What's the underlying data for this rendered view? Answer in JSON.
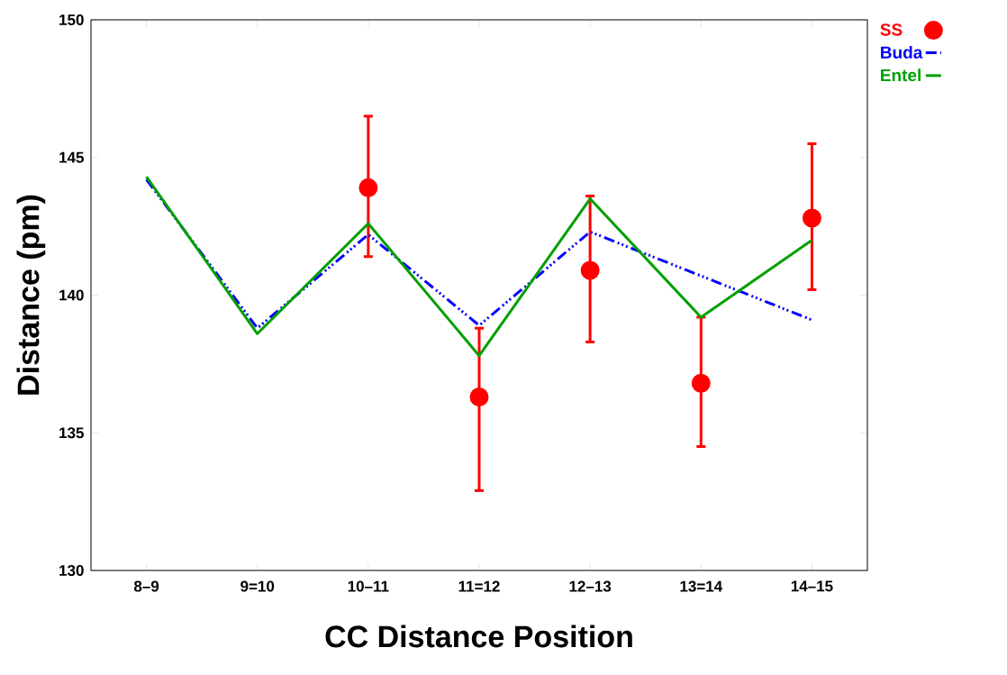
{
  "chart_data": {
    "type": "line",
    "xlabel": "CC Distance Position",
    "ylabel": "Distance (pm)",
    "categories": [
      "8–9",
      "9=10",
      "10–11",
      "11=12",
      "12–13",
      "13=14",
      "14–15"
    ],
    "ylim": [
      130,
      150
    ],
    "yticks": [
      130,
      135,
      140,
      145,
      150
    ],
    "legend": "right",
    "grid": false,
    "series": [
      {
        "name": "SS",
        "type": "scatter",
        "marker": "circle",
        "color": "#ff0000",
        "values": [
          null,
          null,
          143.9,
          136.3,
          140.9,
          136.8,
          142.8
        ],
        "errors": [
          null,
          null,
          [
            141.4,
            146.5
          ],
          [
            132.9,
            138.8
          ],
          [
            138.3,
            143.6
          ],
          [
            134.5,
            139.2
          ],
          [
            140.2,
            145.5
          ]
        ]
      },
      {
        "name": "Buda",
        "line_style": "dashed",
        "color": "#0000ff",
        "values": [
          144.2,
          138.8,
          142.2,
          138.9,
          142.3,
          140.7,
          139.1
        ]
      },
      {
        "name": "Entel",
        "line_style": "solid",
        "color": "#00a000",
        "values": [
          144.3,
          138.6,
          142.6,
          137.8,
          143.5,
          139.2,
          142.0
        ]
      }
    ]
  }
}
